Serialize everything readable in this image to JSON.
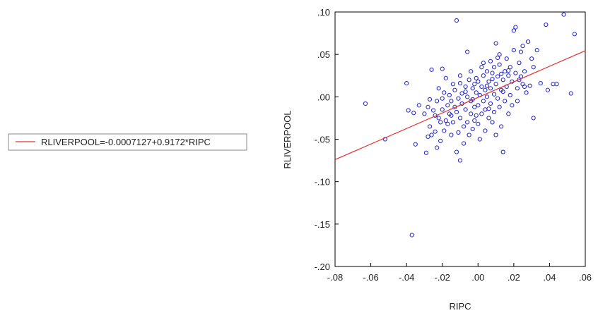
{
  "chart_data": {
    "type": "scatter",
    "xlabel": "RIPC",
    "ylabel": "RLIVERPOOL",
    "xlim": [
      -0.08,
      0.06
    ],
    "ylim": [
      -0.2,
      0.1
    ],
    "x_ticks": [
      -0.08,
      -0.06,
      -0.04,
      -0.02,
      0.0,
      0.02,
      0.04,
      0.06
    ],
    "x_tick_labels": [
      "-.08",
      "-.06",
      "-.04",
      "-.02",
      ".00",
      ".02",
      ".04",
      ".06"
    ],
    "y_ticks": [
      -0.2,
      -0.15,
      -0.1,
      -0.05,
      0.0,
      0.05,
      0.1
    ],
    "y_tick_labels": [
      "-.20",
      "-.15",
      "-.10",
      "-.05",
      ".00",
      ".05",
      ".10"
    ],
    "grid": false,
    "legend": {
      "placement": "left",
      "entries": [
        {
          "label": "RLIVERPOOL=-0.0007127+0.9172*RIPC",
          "color": "#e03030"
        }
      ]
    },
    "fit_line": {
      "intercept": -0.0007127,
      "slope": 0.9172,
      "color": "#e03030"
    },
    "point_color": "#2020d0",
    "points": [
      [
        -0.063,
        -0.008
      ],
      [
        -0.052,
        -0.05
      ],
      [
        -0.04,
        0.016
      ],
      [
        -0.039,
        -0.016
      ],
      [
        -0.037,
        -0.163
      ],
      [
        -0.036,
        -0.019
      ],
      [
        -0.035,
        -0.056
      ],
      [
        -0.033,
        -0.01
      ],
      [
        -0.03,
        -0.02
      ],
      [
        -0.029,
        -0.066
      ],
      [
        -0.028,
        -0.047
      ],
      [
        -0.028,
        -0.012
      ],
      [
        -0.027,
        -0.035
      ],
      [
        -0.027,
        -0.003
      ],
      [
        -0.026,
        0.032
      ],
      [
        -0.026,
        -0.045
      ],
      [
        -0.025,
        -0.016
      ],
      [
        -0.024,
        -0.022
      ],
      [
        -0.024,
        -0.041
      ],
      [
        -0.023,
        -0.06
      ],
      [
        -0.023,
        -0.005
      ],
      [
        -0.022,
        -0.025
      ],
      [
        -0.022,
        0.01
      ],
      [
        -0.021,
        -0.052
      ],
      [
        -0.021,
        -0.03
      ],
      [
        -0.02,
        0.033
      ],
      [
        -0.02,
        -0.015
      ],
      [
        -0.019,
        0.005
      ],
      [
        -0.019,
        -0.04
      ],
      [
        -0.018,
        0.022
      ],
      [
        -0.018,
        -0.028
      ],
      [
        -0.017,
        -0.01
      ],
      [
        -0.017,
        -0.032
      ],
      [
        -0.016,
        0.002
      ],
      [
        -0.016,
        -0.02
      ],
      [
        -0.015,
        -0.045
      ],
      [
        -0.015,
        -0.005
      ],
      [
        -0.014,
        0.015
      ],
      [
        -0.014,
        -0.03
      ],
      [
        -0.013,
        -0.012
      ],
      [
        -0.013,
        0.008
      ],
      [
        -0.012,
        0.09
      ],
      [
        -0.012,
        -0.018
      ],
      [
        -0.012,
        -0.065
      ],
      [
        -0.011,
        -0.002
      ],
      [
        -0.011,
        -0.042
      ],
      [
        -0.01,
        0.025
      ],
      [
        -0.01,
        -0.075
      ],
      [
        -0.01,
        -0.025
      ],
      [
        -0.009,
        -0.008
      ],
      [
        -0.009,
        0.004
      ],
      [
        -0.008,
        -0.035
      ],
      [
        -0.008,
        -0.055
      ],
      [
        -0.007,
        0.012
      ],
      [
        -0.007,
        -0.015
      ],
      [
        -0.006,
        0.053
      ],
      [
        -0.006,
        -0.03
      ],
      [
        -0.006,
        0.0
      ],
      [
        -0.005,
        0.02
      ],
      [
        -0.005,
        -0.045
      ],
      [
        -0.004,
        -0.005
      ],
      [
        -0.004,
        0.03
      ],
      [
        -0.004,
        -0.02
      ],
      [
        -0.003,
        0.01
      ],
      [
        -0.003,
        -0.038
      ],
      [
        -0.002,
        0.015
      ],
      [
        -0.002,
        -0.012
      ],
      [
        -0.002,
        -0.028
      ],
      [
        -0.001,
        0.022
      ],
      [
        -0.001,
        0.005
      ],
      [
        0.0,
        -0.01
      ],
      [
        0.0,
        0.018
      ],
      [
        0.0,
        -0.032
      ],
      [
        0.001,
        0.002
      ],
      [
        0.001,
        -0.05
      ],
      [
        0.002,
        0.012
      ],
      [
        0.002,
        -0.02
      ],
      [
        0.002,
        0.035
      ],
      [
        0.003,
        -0.005
      ],
      [
        0.003,
        0.025
      ],
      [
        0.004,
        -0.015
      ],
      [
        0.004,
        0.008
      ],
      [
        0.004,
        -0.04
      ],
      [
        0.005,
        0.03
      ],
      [
        0.005,
        0.0
      ],
      [
        0.006,
        -0.025
      ],
      [
        0.006,
        0.018
      ],
      [
        0.007,
        0.042
      ],
      [
        0.007,
        -0.008
      ],
      [
        0.007,
        0.01
      ],
      [
        0.008,
        -0.03
      ],
      [
        0.008,
        0.028
      ],
      [
        0.009,
        0.003
      ],
      [
        0.009,
        0.035
      ],
      [
        0.009,
        -0.018
      ],
      [
        0.01,
        0.063
      ],
      [
        0.01,
        0.015
      ],
      [
        0.01,
        -0.045
      ],
      [
        0.011,
        -0.002
      ],
      [
        0.011,
        0.024
      ],
      [
        0.012,
        0.038
      ],
      [
        0.012,
        -0.012
      ],
      [
        0.012,
        0.05
      ],
      [
        0.013,
        0.008
      ],
      [
        0.013,
        -0.035
      ],
      [
        0.014,
        0.02
      ],
      [
        0.014,
        -0.065
      ],
      [
        0.015,
        0.03
      ],
      [
        0.015,
        -0.005
      ],
      [
        0.016,
        0.012
      ],
      [
        0.016,
        0.045
      ],
      [
        0.017,
        -0.02
      ],
      [
        0.017,
        0.025
      ],
      [
        0.018,
        0.002
      ],
      [
        0.018,
        0.035
      ],
      [
        0.019,
        -0.01
      ],
      [
        0.019,
        0.018
      ],
      [
        0.02,
        0.055
      ],
      [
        0.02,
        0.078
      ],
      [
        0.021,
        0.028
      ],
      [
        0.021,
        0.082
      ],
      [
        0.022,
        0.01
      ],
      [
        0.022,
        -0.005
      ],
      [
        0.023,
        0.04
      ],
      [
        0.023,
        0.02
      ],
      [
        0.024,
        0.053
      ],
      [
        0.025,
        0.015
      ],
      [
        0.025,
        0.06
      ],
      [
        0.026,
        0.03
      ],
      [
        0.027,
        0.005
      ],
      [
        0.028,
        0.065
      ],
      [
        0.029,
        0.013
      ],
      [
        0.03,
        0.045
      ],
      [
        0.031,
        -0.025
      ],
      [
        0.031,
        0.035
      ],
      [
        0.033,
        0.055
      ],
      [
        0.035,
        0.016
      ],
      [
        0.038,
        0.085
      ],
      [
        0.039,
        0.008
      ],
      [
        0.042,
        0.015
      ],
      [
        0.048,
        0.097
      ],
      [
        0.052,
        0.004
      ],
      [
        0.054,
        0.074
      ],
      [
        0.044,
        0.015
      ],
      [
        0.026,
        0.012
      ],
      [
        -0.001,
        -0.022
      ],
      [
        0.003,
        0.04
      ],
      [
        0.005,
        0.013
      ],
      [
        -0.007,
        0.006
      ],
      [
        0.011,
        0.046
      ],
      [
        0.013,
        0.027
      ],
      [
        -0.015,
        -0.022
      ],
      [
        0.017,
        0.031
      ],
      [
        0.008,
        0.021
      ],
      [
        -0.02,
        -0.002
      ],
      [
        0.024,
        0.024
      ],
      [
        0.006,
        -0.014
      ],
      [
        -0.003,
        -0.003
      ],
      [
        0.014,
        0.006
      ],
      [
        -0.01,
        0.016
      ]
    ]
  }
}
